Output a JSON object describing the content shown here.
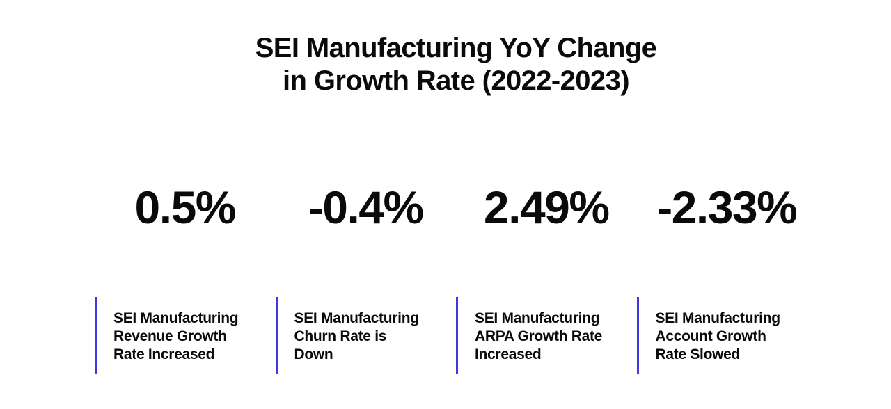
{
  "page": {
    "background_color": "#ffffff",
    "text_color": "#0a0a0a",
    "accent_color": "#3a3ae0"
  },
  "title": {
    "line1": "SEI Manufacturing YoY Change",
    "line2": "in Growth Rate (2022-2023)"
  },
  "cards": [
    {
      "value": "0.5%",
      "lines": [
        "SEI Manufacturing",
        "Revenue Growth",
        "Rate Increased"
      ]
    },
    {
      "value": "-0.4%",
      "lines": [
        "SEI Manufacturing",
        "Churn Rate is",
        "Down"
      ]
    },
    {
      "value": "2.49%",
      "lines": [
        "SEI Manufacturing",
        "ARPA Growth Rate",
        "Increased"
      ]
    },
    {
      "value": "-2.33%",
      "lines": [
        "SEI Manufacturing",
        "Account Growth",
        "Rate Slowed"
      ]
    }
  ],
  "chart_data": {
    "type": "table",
    "title": "SEI Manufacturing YoY Change in Growth Rate (2022-2023)",
    "categories": [
      "SEI Manufacturing Revenue Growth Rate Increased",
      "SEI Manufacturing Churn Rate is Down",
      "SEI Manufacturing ARPA Growth Rate Increased",
      "SEI Manufacturing Account Growth Rate Slowed"
    ],
    "values": [
      0.5,
      -0.4,
      2.49,
      -2.33
    ],
    "unit": "%",
    "legend_position": "none",
    "grid": false
  }
}
